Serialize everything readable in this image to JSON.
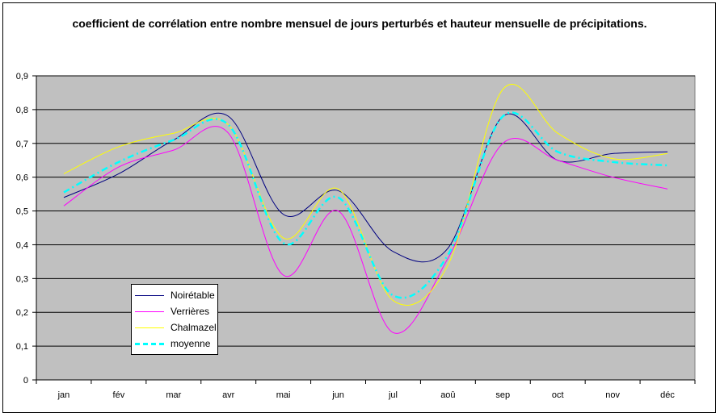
{
  "chart_data": {
    "type": "line",
    "title": "coefficient de corrélation entre nombre mensuel de jours perturbés et hauteur mensuelle de précipitations.",
    "categories": [
      "jan",
      "fév",
      "mar",
      "avr",
      "mai",
      "jun",
      "jul",
      "aoû",
      "sep",
      "oct",
      "nov",
      "déc"
    ],
    "ylim": [
      0,
      0.9
    ],
    "yticks": [
      "0",
      "0,1",
      "0,2",
      "0,3",
      "0,4",
      "0,5",
      "0,6",
      "0,7",
      "0,8",
      "0,9"
    ],
    "grid": true,
    "legend_position": "lower-left",
    "series": [
      {
        "name": "Noirétable",
        "color": "#000080",
        "dash": "none",
        "width": 1,
        "values": [
          0.54,
          0.61,
          0.71,
          0.78,
          0.49,
          0.56,
          0.38,
          0.39,
          0.78,
          0.65,
          0.67,
          0.675
        ]
      },
      {
        "name": "Verrières",
        "color": "#ff00ff",
        "dash": "none",
        "width": 1,
        "values": [
          0.515,
          0.63,
          0.68,
          0.73,
          0.31,
          0.5,
          0.14,
          0.36,
          0.7,
          0.65,
          0.6,
          0.565
        ]
      },
      {
        "name": "Chalmazel",
        "color": "#ffff00",
        "dash": "none",
        "width": 1,
        "values": [
          0.61,
          0.69,
          0.73,
          0.755,
          0.42,
          0.565,
          0.235,
          0.34,
          0.86,
          0.73,
          0.655,
          0.67
        ]
      },
      {
        "name": "moyenne",
        "color": "#00ffff",
        "dash": "8,4,2,4",
        "width": 2.5,
        "values": [
          0.555,
          0.645,
          0.71,
          0.755,
          0.405,
          0.54,
          0.25,
          0.37,
          0.78,
          0.675,
          0.645,
          0.635
        ]
      }
    ]
  }
}
